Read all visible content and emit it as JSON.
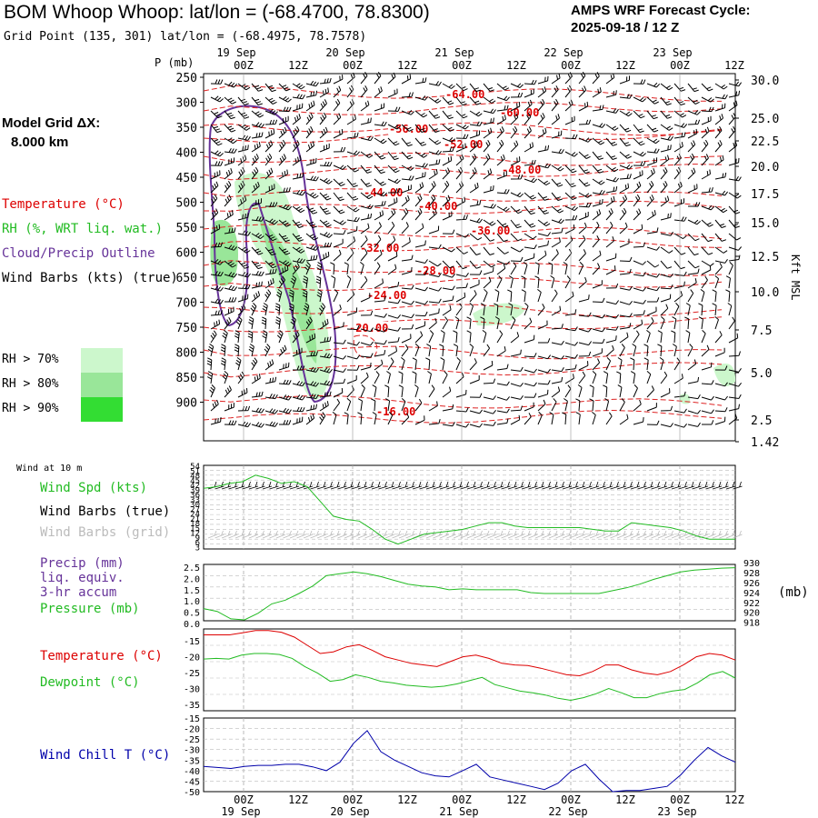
{
  "header": {
    "title": "BOM Whoop Whoop:  lat/lon = (-68.4700, 78.8300)",
    "grid_point": "Grid Point (135, 301) lat/lon = (-68.4975, 78.7578)",
    "cycle_title": "AMPS WRF Forecast Cycle:",
    "cycle_value": "2025-09-18 / 12  Z"
  },
  "legend": {
    "model_grid_l1": "Model Grid ΔX:",
    "model_grid_l2": "8.000 km",
    "temperature": "Temperature (°C)",
    "rh": "RH (%, WRT liq. wat.)",
    "cloud": "Cloud/Precip Outline",
    "wind_barbs": "Wind Barbs (kts) (true)",
    "rh70": "RH > 70%",
    "rh80": "RH > 80%",
    "rh90": "RH > 90%",
    "colors": {
      "temperature": "#dd0000",
      "rh70": "#ccf7cc",
      "rh80": "#99e699",
      "rh90": "#33dd33",
      "cloud": "#663399",
      "wind": "#000000"
    }
  },
  "time_axis": {
    "day_labels": [
      "19 Sep",
      "20 Sep",
      "21 Sep",
      "22 Sep",
      "23 Sep"
    ],
    "hour_labels": [
      "00Z",
      "12Z",
      "00Z",
      "12Z",
      "00Z",
      "12Z",
      "00Z",
      "12Z",
      "00Z",
      "12Z"
    ]
  },
  "chart_data": [
    {
      "type": "heatmap",
      "name": "cross-section",
      "y_axis_label": "P (mb)",
      "pressure_ticks": [
        250,
        300,
        350,
        400,
        450,
        500,
        550,
        600,
        650,
        700,
        750,
        800,
        850,
        900
      ],
      "height_label": "Kft MSL",
      "height_ticks": [
        "30.0",
        "25.0",
        "22.5",
        "20.0",
        "17.5",
        "15.0",
        "12.5",
        "10.0",
        "7.5",
        "5.0",
        "2.5",
        "1.42"
      ],
      "temperature_contour_labels": [
        "-64.00",
        "-60.00",
        "-56.00",
        "-52.00",
        "-48.00",
        "-44.00",
        "-40.00",
        "-36.00",
        "-32.00",
        "-28.00",
        "-24.00",
        "-20.00",
        "-16.00"
      ]
    },
    {
      "type": "line",
      "name": "wind-10m",
      "section_label": "Wind at 10 m",
      "labels": {
        "wind_spd": "Wind Spd (kts)",
        "barbs_true": "Wind Barbs (true)",
        "barbs_grid": "Wind Barbs (grid)"
      },
      "y_ticks": [
        "54",
        "51",
        "48",
        "45",
        "42",
        "39",
        "36",
        "33",
        "30",
        "27",
        "24",
        "21",
        "18",
        "15",
        "12",
        "9",
        "6",
        "3"
      ],
      "ylim": [
        3,
        54
      ],
      "series": [
        {
          "values": [
            40,
            41,
            43,
            44,
            48,
            46,
            43,
            44,
            41,
            32,
            23,
            21,
            20,
            15,
            9,
            6,
            9,
            12,
            13,
            14,
            15,
            17,
            19,
            19,
            17,
            16,
            16,
            16,
            16,
            16,
            15,
            14,
            14,
            19,
            18,
            17,
            16,
            14,
            11,
            9,
            9,
            9
          ]
        }
      ]
    },
    {
      "type": "line",
      "name": "precip-pressure",
      "labels": {
        "precip_l1": "Precip (mm)",
        "precip_l2": "liq. equiv.",
        "precip_l3": "3-hr accum",
        "pressure": "Pressure (mb)"
      },
      "left_ticks": [
        "2.5",
        "2.0",
        "1.5",
        "1.0",
        "0.5",
        "0.0"
      ],
      "right_ticks": [
        "930",
        "928",
        "926",
        "924",
        "922",
        "920",
        "918"
      ],
      "right_unit": "(mb)",
      "ylim_precip": [
        0,
        2.5
      ],
      "ylim_pressure": [
        918,
        930
      ],
      "series": [
        {
          "values": [
            920.6,
            920,
            918.4,
            918.2,
            919.6,
            921.6,
            922.4,
            923.8,
            925.4,
            927.6,
            928,
            928.4,
            928,
            927.4,
            926.6,
            925.8,
            925.4,
            925.2,
            924.6,
            924.8,
            924.6,
            924.6,
            924.6,
            924.6,
            924,
            923.8,
            923.8,
            923.8,
            923.8,
            923.8,
            924.4,
            925,
            925.8,
            926.8,
            927.6,
            928.4,
            928.8,
            929,
            929.2,
            929.3
          ]
        }
      ]
    },
    {
      "type": "line",
      "name": "temp-dewpoint",
      "labels": {
        "temperature": "Temperature (°C)",
        "dewpoint": "Dewpoint (°C)"
      },
      "y_ticks": [
        "-15",
        "-20",
        "-25",
        "-30",
        "-35"
      ],
      "ylim": [
        -35,
        -10
      ],
      "series": [
        {
          "values": [
            -11.8,
            -11.8,
            -11.8,
            -11.2,
            -10.5,
            -10.5,
            -11,
            -12.5,
            -15,
            -17.5,
            -17,
            -15.5,
            -14.8,
            -16.5,
            -18.5,
            -19.5,
            -20.5,
            -21,
            -21.5,
            -20,
            -18.5,
            -18,
            -19,
            -20.5,
            -21,
            -21.2,
            -22,
            -23,
            -24,
            -24.3,
            -23,
            -21,
            -21,
            -22.5,
            -23.5,
            -24,
            -23,
            -21,
            -18.5,
            -17.5,
            -18,
            -19.5
          ]
        },
        {
          "values": [
            -19.2,
            -19,
            -19.2,
            -18,
            -17.5,
            -17.5,
            -17.8,
            -19,
            -21.5,
            -23.5,
            -26,
            -25.5,
            -24,
            -24.8,
            -26,
            -26.5,
            -27.2,
            -27.5,
            -27.8,
            -27.5,
            -26.8,
            -25.8,
            -24.8,
            -27,
            -28,
            -29,
            -29.5,
            -30.2,
            -31.2,
            -31.8,
            -31,
            -29.8,
            -28.2,
            -29.5,
            -31,
            -31,
            -29.8,
            -29,
            -28.5,
            -26.5,
            -24,
            -23,
            -25
          ]
        }
      ]
    },
    {
      "type": "line",
      "name": "wind-chill",
      "labels": {
        "wind_chill": "Wind Chill T (°C)"
      },
      "y_ticks": [
        "-15",
        "-20",
        "-25",
        "-30",
        "-35",
        "-40",
        "-45",
        "-50"
      ],
      "ylim": [
        -50,
        -15
      ],
      "series": [
        {
          "values": [
            -38,
            -38.5,
            -39,
            -38,
            -37.5,
            -37.5,
            -37,
            -37,
            -38.2,
            -40,
            -36,
            -27,
            -21,
            -31,
            -35,
            -38,
            -41,
            -42.5,
            -43,
            -40,
            -37,
            -43,
            -44.5,
            -46,
            -47.5,
            -49,
            -46,
            -40,
            -37,
            -44,
            -50,
            -49.5,
            -49.5,
            -48.5,
            -47.5,
            -42,
            -35,
            -29,
            -33,
            -36
          ]
        }
      ]
    }
  ]
}
